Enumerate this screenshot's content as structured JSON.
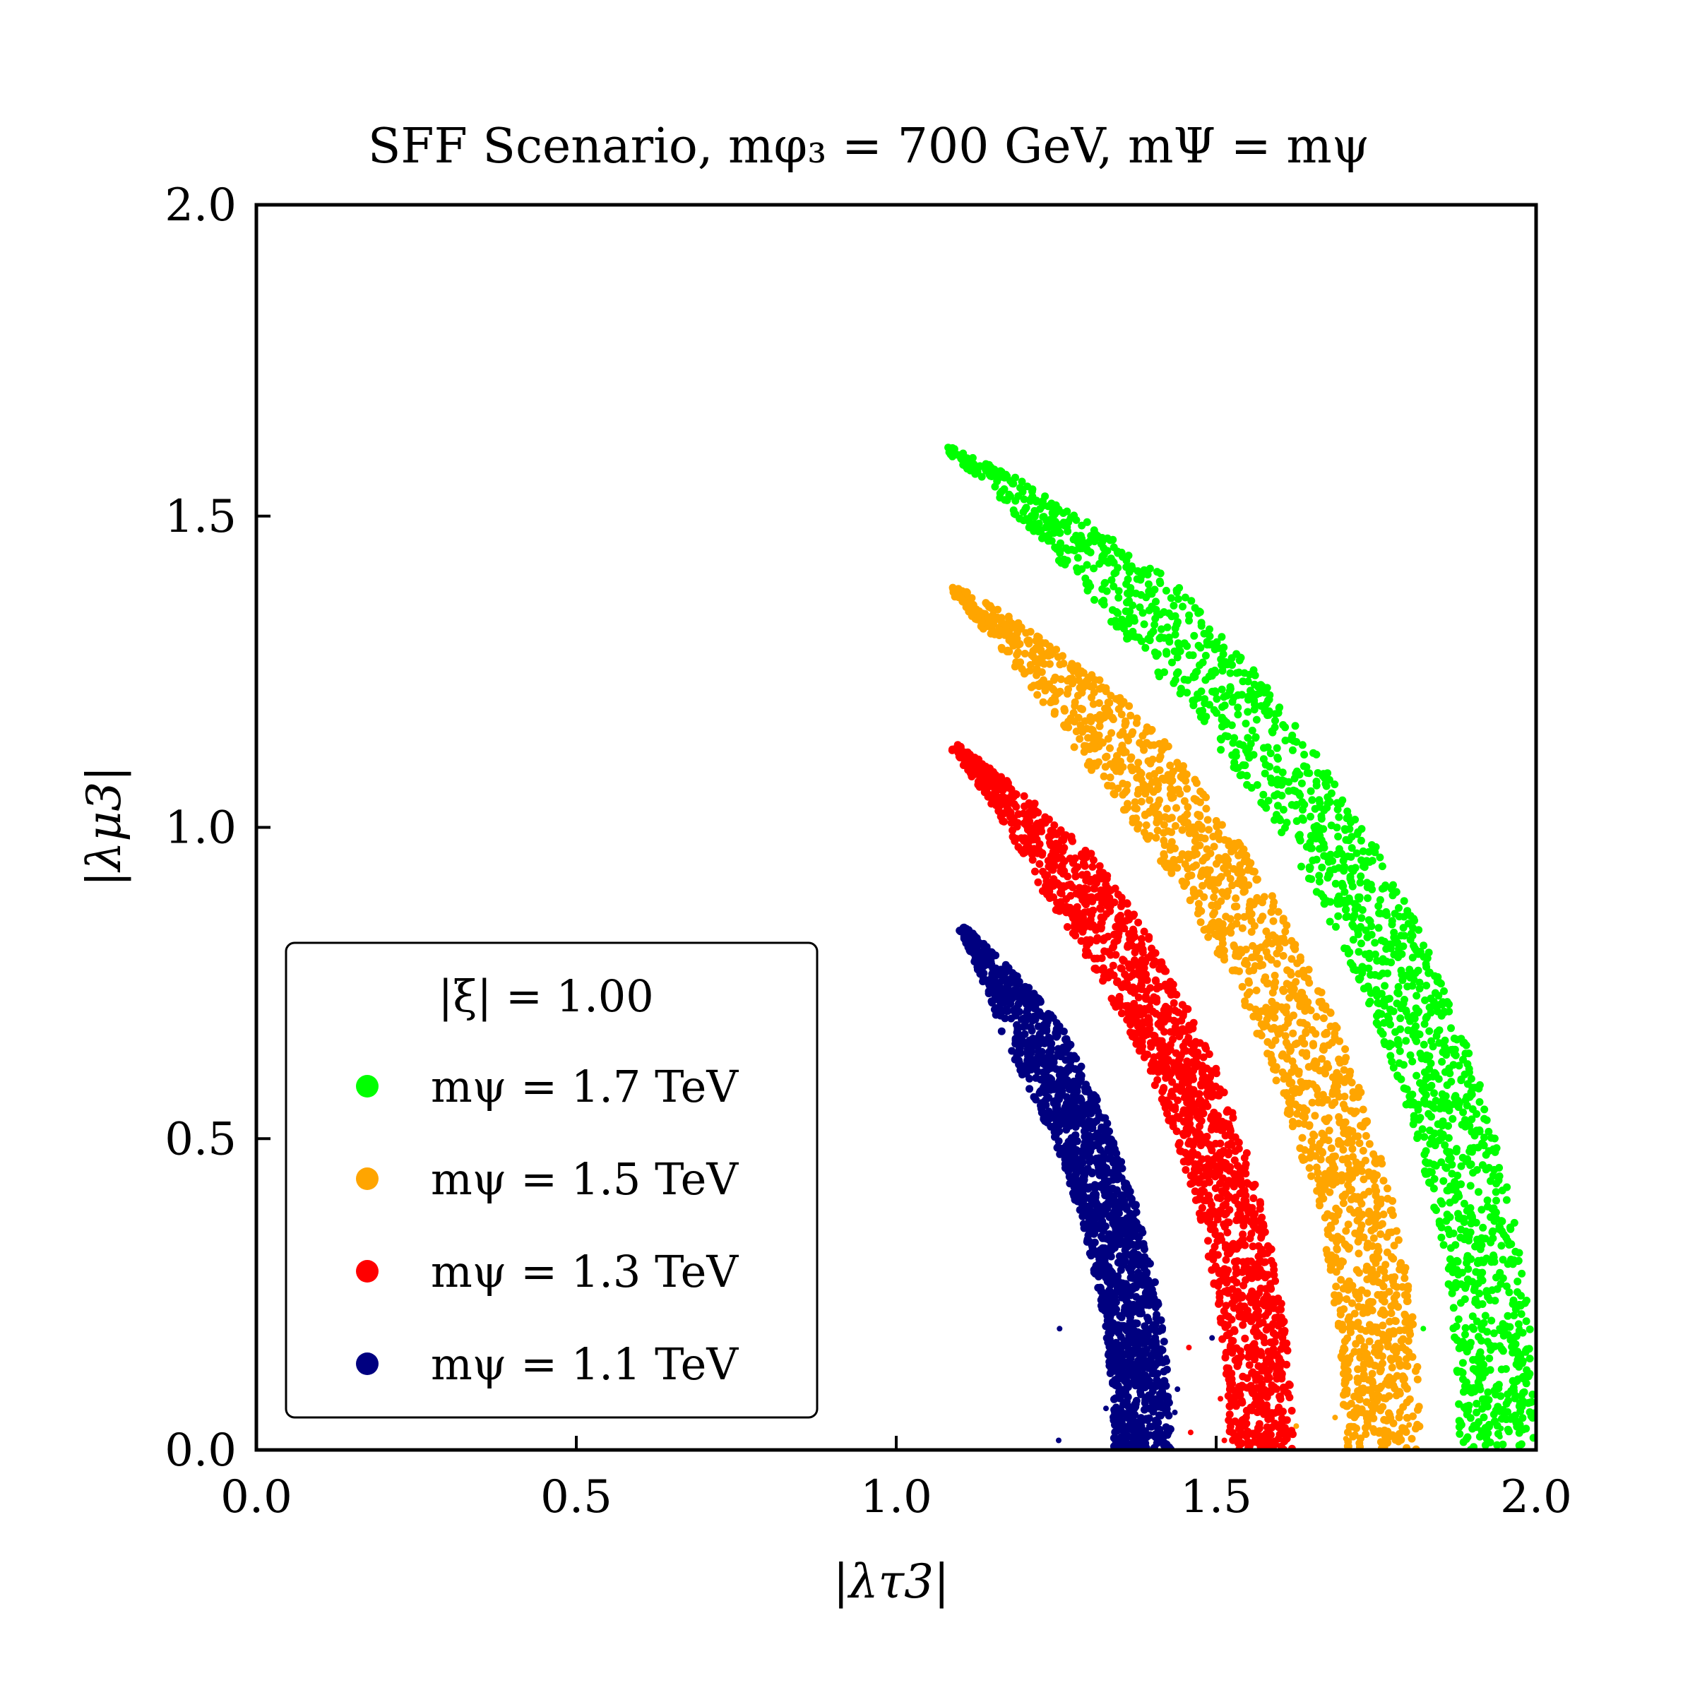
{
  "chart_data": {
    "type": "scatter",
    "title": "SFF Scenario, mφ₃ = 700 GeV, mΨ = mψ",
    "xlabel": "|λτ3|",
    "ylabel": "|λμ3|",
    "xlim": [
      0.0,
      2.0
    ],
    "ylim": [
      0.0,
      2.0
    ],
    "x_ticks": [
      "0.0",
      "0.5",
      "1.0",
      "1.5",
      "2.0"
    ],
    "y_ticks": [
      "0.0",
      "0.5",
      "1.0",
      "1.5",
      "2.0"
    ],
    "grid": false,
    "legend": {
      "title": "|ξ| = 1.00",
      "placement": "lower-left"
    },
    "series": [
      {
        "name": "mψ = 1.7 TeV",
        "color": "#00ff00",
        "arc": {
          "x_start": 1.06,
          "y_start": 1.58,
          "x_end_inner": 1.9,
          "x_end_outer": 2.0,
          "radius_inner": 1.88,
          "radius_outer": 2.0
        }
      },
      {
        "name": "mψ = 1.5 TeV",
        "color": "#ffa500",
        "arc": {
          "x_start": 1.06,
          "y_start": 1.35,
          "x_end_inner": 1.72,
          "x_end_outer": 1.82,
          "radius_inner": 1.7,
          "radius_outer": 1.82
        }
      },
      {
        "name": "mψ = 1.3 TeV",
        "color": "#ff0000",
        "arc": {
          "x_start": 1.06,
          "y_start": 1.1,
          "x_end_inner": 1.53,
          "x_end_outer": 1.62,
          "radius_inner": 1.52,
          "radius_outer": 1.62
        }
      },
      {
        "name": "mψ = 1.1 TeV",
        "color": "#000080",
        "arc": {
          "x_start": 1.08,
          "y_start": 0.82,
          "x_end_inner": 1.35,
          "x_end_outer": 1.43,
          "radius_inner": 1.34,
          "radius_outer": 1.43
        }
      }
    ]
  }
}
